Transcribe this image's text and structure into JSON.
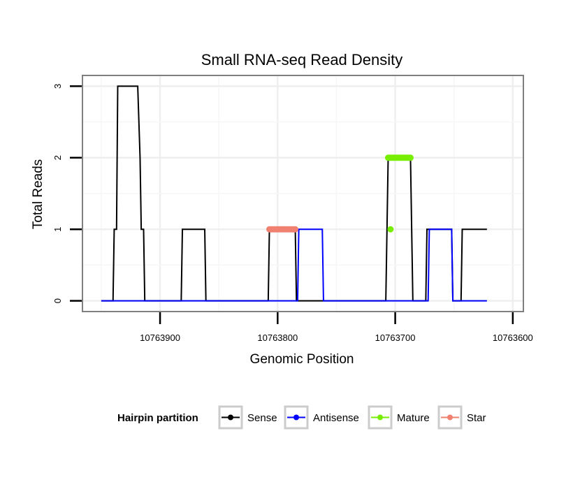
{
  "chart_data": {
    "type": "line",
    "title": "Small RNA-seq Read Density",
    "xlabel": "Genomic Position",
    "ylabel": "Total Reads",
    "xlim": [
      10763966,
      10763591
    ],
    "ylim": [
      -0.15,
      3.15
    ],
    "x_reversed": true,
    "grid": true,
    "x_ticks": [
      10763900,
      10763800,
      10763700,
      10763600
    ],
    "x_tick_labels": [
      "10763900",
      "10763800",
      "10763700",
      "10763600"
    ],
    "y_ticks": [
      0,
      1,
      2,
      3
    ],
    "y_tick_labels": [
      "0",
      "1",
      "2",
      "3"
    ],
    "series": [
      {
        "name": "Sense",
        "color": "#000000",
        "kind": "line",
        "points": [
          [
            10763950,
            0
          ],
          [
            10763940,
            0
          ],
          [
            10763939,
            1
          ],
          [
            10763937,
            1
          ],
          [
            10763936,
            3
          ],
          [
            10763919,
            3
          ],
          [
            10763917,
            2
          ],
          [
            10763916,
            1
          ],
          [
            10763914,
            1
          ],
          [
            10763913,
            0
          ],
          [
            10763882,
            0
          ],
          [
            10763881,
            1
          ],
          [
            10763862,
            1
          ],
          [
            10763861,
            0
          ],
          [
            10763808,
            0
          ],
          [
            10763807,
            1
          ],
          [
            10763785,
            1
          ],
          [
            10763784,
            0
          ],
          [
            10763708,
            0
          ],
          [
            10763707,
            1
          ],
          [
            10763706,
            2
          ],
          [
            10763687,
            2
          ],
          [
            10763686,
            1
          ],
          [
            10763685,
            0
          ],
          [
            10763674,
            0
          ],
          [
            10763673,
            1
          ],
          [
            10763652,
            1
          ],
          [
            10763651,
            0
          ],
          [
            10763644,
            0
          ],
          [
            10763643,
            1
          ],
          [
            10763622,
            1
          ]
        ]
      },
      {
        "name": "Antisense",
        "color": "#0000ff",
        "kind": "line",
        "points": [
          [
            10763950,
            0
          ],
          [
            10763783,
            0
          ],
          [
            10763782,
            1
          ],
          [
            10763762,
            1
          ],
          [
            10763761,
            0
          ],
          [
            10763672,
            0
          ],
          [
            10763671,
            1
          ],
          [
            10763652,
            1
          ],
          [
            10763651,
            0
          ],
          [
            10763622,
            0
          ]
        ]
      },
      {
        "name": "Mature",
        "color": "#77ee00",
        "kind": "points",
        "points": [
          [
            10763704,
            1
          ],
          [
            10763706,
            2
          ],
          [
            10763705,
            2
          ],
          [
            10763704,
            2
          ],
          [
            10763703,
            2
          ],
          [
            10763702,
            2
          ],
          [
            10763701,
            2
          ],
          [
            10763700,
            2
          ],
          [
            10763699,
            2
          ],
          [
            10763698,
            2
          ],
          [
            10763697,
            2
          ],
          [
            10763696,
            2
          ],
          [
            10763695,
            2
          ],
          [
            10763694,
            2
          ],
          [
            10763693,
            2
          ],
          [
            10763692,
            2
          ],
          [
            10763691,
            2
          ],
          [
            10763690,
            2
          ],
          [
            10763689,
            2
          ],
          [
            10763688,
            2
          ],
          [
            10763687,
            2
          ]
        ]
      },
      {
        "name": "Star",
        "color": "#f08070",
        "kind": "points",
        "points": [
          [
            10763807,
            1
          ],
          [
            10763806,
            1
          ],
          [
            10763805,
            1
          ],
          [
            10763804,
            1
          ],
          [
            10763803,
            1
          ],
          [
            10763802,
            1
          ],
          [
            10763801,
            1
          ],
          [
            10763800,
            1
          ],
          [
            10763799,
            1
          ],
          [
            10763798,
            1
          ],
          [
            10763797,
            1
          ],
          [
            10763796,
            1
          ],
          [
            10763795,
            1
          ],
          [
            10763794,
            1
          ],
          [
            10763793,
            1
          ],
          [
            10763792,
            1
          ],
          [
            10763791,
            1
          ],
          [
            10763790,
            1
          ],
          [
            10763789,
            1
          ],
          [
            10763788,
            1
          ],
          [
            10763787,
            1
          ],
          [
            10763786,
            1
          ],
          [
            10763785,
            1
          ]
        ]
      }
    ],
    "legend": {
      "title": "Hairpin partition",
      "placement": "bottom",
      "items": [
        {
          "label": "Sense",
          "color": "#000000"
        },
        {
          "label": "Antisense",
          "color": "#0000ff"
        },
        {
          "label": "Mature",
          "color": "#77ee00"
        },
        {
          "label": "Star",
          "color": "#f08070"
        }
      ]
    }
  }
}
